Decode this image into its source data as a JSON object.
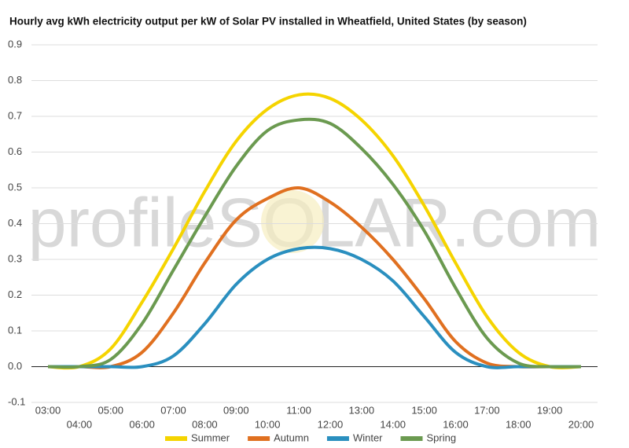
{
  "chart_data": {
    "type": "line",
    "title": "Hourly avg kWh electricity output per kW of Solar PV installed in Wheatfield, United States (by season)",
    "watermark": "profileSOLAR.com",
    "categories": [
      "03:00",
      "04:00",
      "05:00",
      "06:00",
      "07:00",
      "08:00",
      "09:00",
      "10:00",
      "11:00",
      "12:00",
      "13:00",
      "14:00",
      "15:00",
      "16:00",
      "17:00",
      "18:00",
      "19:00",
      "20:00"
    ],
    "series": [
      {
        "name": "Summer",
        "color": "#f5d400",
        "values": [
          0,
          0,
          0.05,
          0.18,
          0.33,
          0.49,
          0.63,
          0.72,
          0.76,
          0.75,
          0.69,
          0.59,
          0.45,
          0.29,
          0.14,
          0.04,
          0,
          0
        ]
      },
      {
        "name": "Autumn",
        "color": "#e07020",
        "values": [
          0,
          0,
          0,
          0.04,
          0.15,
          0.29,
          0.41,
          0.47,
          0.5,
          0.46,
          0.39,
          0.3,
          0.19,
          0.07,
          0.01,
          0,
          0,
          0
        ]
      },
      {
        "name": "Winter",
        "color": "#2a8fbf",
        "values": [
          0,
          0,
          0,
          0,
          0.03,
          0.12,
          0.23,
          0.3,
          0.33,
          0.33,
          0.3,
          0.24,
          0.14,
          0.04,
          0,
          0,
          0,
          0
        ]
      },
      {
        "name": "Spring",
        "color": "#6b9a50",
        "values": [
          0,
          0,
          0.02,
          0.12,
          0.27,
          0.42,
          0.56,
          0.66,
          0.69,
          0.68,
          0.61,
          0.51,
          0.38,
          0.22,
          0.08,
          0.01,
          0,
          0
        ]
      }
    ],
    "ylim": [
      -0.1,
      0.9
    ],
    "yticks": [
      -0.1,
      {
        "value": 0,
        "label": "0.0"
      },
      0.1,
      0.2,
      0.3,
      0.4,
      0.5,
      0.6,
      0.7,
      0.8,
      0.9
    ],
    "grid": true
  }
}
